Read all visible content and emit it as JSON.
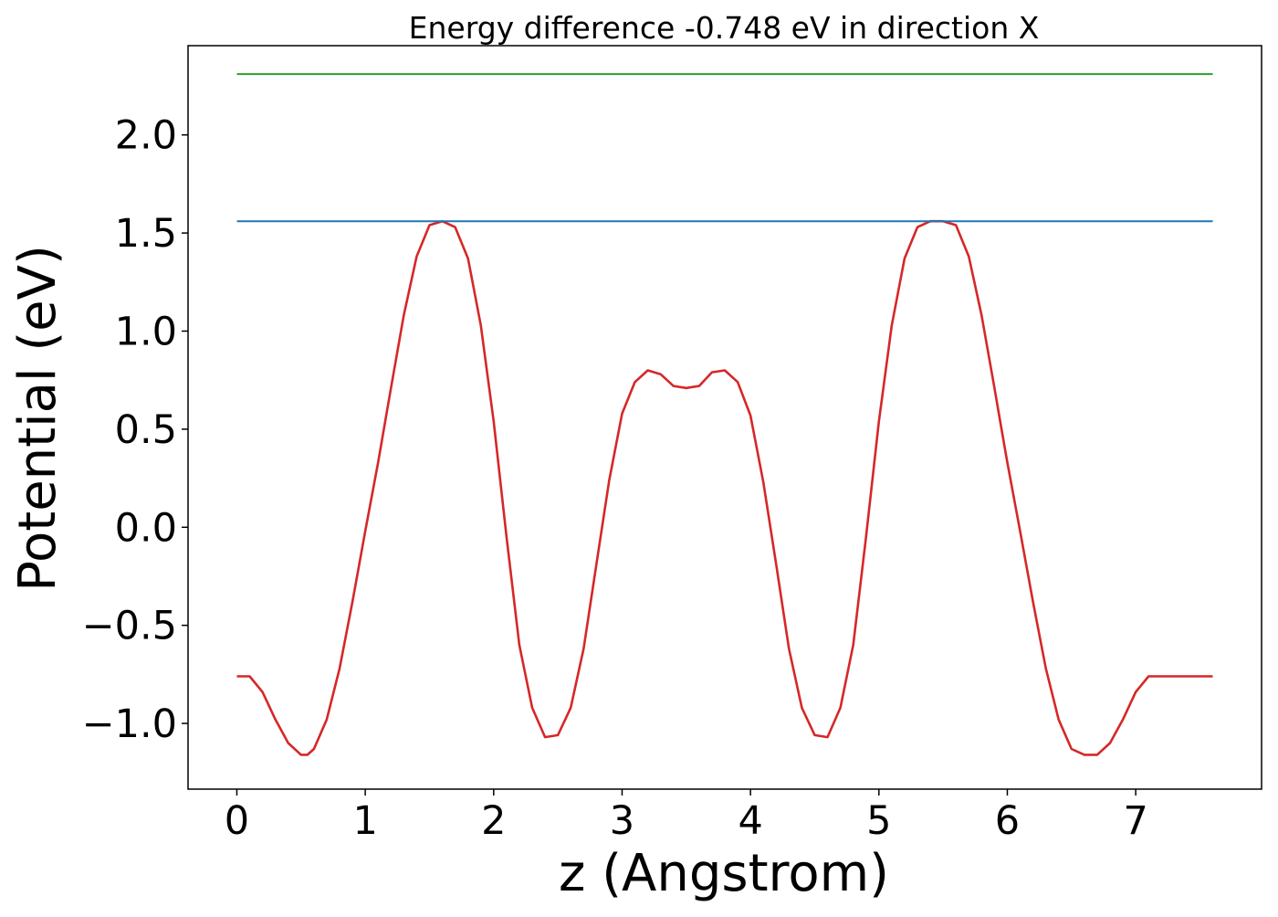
{
  "chart_data": {
    "type": "line",
    "title": "Energy difference -0.748 eV in direction X",
    "xlabel": "z (Angstrom)",
    "ylabel": "Potential (eV)",
    "xlim": [
      -0.38,
      7.98
    ],
    "ylim": [
      -1.335,
      2.455
    ],
    "xticks": [
      0,
      1,
      2,
      3,
      4,
      5,
      6,
      7
    ],
    "xtick_labels": [
      "0",
      "1",
      "2",
      "3",
      "4",
      "5",
      "6",
      "7"
    ],
    "yticks": [
      -1.0,
      -0.5,
      0.0,
      0.5,
      1.0,
      1.5,
      2.0
    ],
    "ytick_labels": [
      "−1.0",
      "−0.5",
      "0.0",
      "0.5",
      "1.0",
      "1.5",
      "2.0"
    ],
    "grid": false,
    "series": [
      {
        "color": "#d62728",
        "x": [
          0.0,
          0.1,
          0.2,
          0.3,
          0.4,
          0.5,
          0.55,
          0.6,
          0.7,
          0.8,
          0.9,
          1.0,
          1.1,
          1.2,
          1.3,
          1.4,
          1.5,
          1.6,
          1.7,
          1.8,
          1.9,
          2.0,
          2.1,
          2.2,
          2.3,
          2.4,
          2.5,
          2.6,
          2.7,
          2.8,
          2.9,
          3.0,
          3.1,
          3.2,
          3.3,
          3.4,
          3.5,
          3.6,
          3.7,
          3.8,
          3.9,
          4.0,
          4.1,
          4.2,
          4.3,
          4.4,
          4.5,
          4.6,
          4.7,
          4.8,
          4.9,
          5.0,
          5.1,
          5.2,
          5.3,
          5.4,
          5.5,
          5.6,
          5.7,
          5.8,
          5.9,
          5.95,
          6.0,
          6.1,
          6.2,
          6.3,
          6.4,
          6.5,
          6.6,
          6.7,
          6.8,
          6.9,
          7.0,
          7.05,
          7.1,
          7.2,
          7.3,
          7.4,
          7.5,
          7.6
        ],
        "y": [
          -0.76,
          -0.76,
          -0.84,
          -0.98,
          -1.1,
          -1.16,
          -1.16,
          -1.13,
          -0.98,
          -0.72,
          -0.38,
          -0.02,
          0.33,
          0.71,
          1.08,
          1.38,
          1.54,
          1.56,
          1.53,
          1.37,
          1.03,
          0.54,
          -0.05,
          -0.6,
          -0.92,
          -1.07,
          -1.06,
          -0.92,
          -0.62,
          -0.19,
          0.24,
          0.58,
          0.74,
          0.8,
          0.78,
          0.72,
          0.71,
          0.72,
          0.79,
          0.8,
          0.74,
          0.57,
          0.23,
          -0.19,
          -0.62,
          -0.92,
          -1.06,
          -1.07,
          -0.92,
          -0.6,
          -0.05,
          0.54,
          1.03,
          1.37,
          1.53,
          1.56,
          1.56,
          1.54,
          1.38,
          1.08,
          0.71,
          0.52,
          0.33,
          -0.02,
          -0.38,
          -0.72,
          -0.98,
          -1.13,
          -1.16,
          -1.16,
          -1.1,
          -0.98,
          -0.84,
          -0.8,
          -0.76,
          -0.76,
          -0.76,
          -0.76,
          -0.76,
          -0.76
        ]
      },
      {
        "color": "#1f77b4",
        "x": [
          0.0,
          7.6
        ],
        "y": [
          1.56,
          1.56
        ]
      },
      {
        "color": "#2ca02c",
        "x": [
          0.0,
          7.6
        ],
        "y": [
          2.31,
          2.31
        ]
      }
    ]
  }
}
